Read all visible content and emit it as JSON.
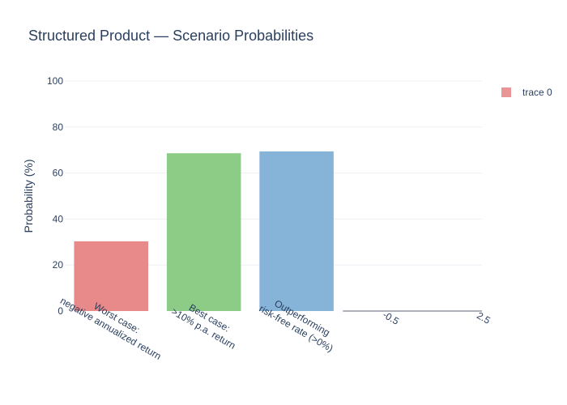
{
  "chart_data": {
    "type": "bar",
    "title": "Structured Product — Scenario Probabilities",
    "ylabel": "Probability (%)",
    "xlabel": "",
    "ylim": [
      0,
      100
    ],
    "yticks": [
      0,
      20,
      40,
      60,
      80,
      100
    ],
    "grid": true,
    "legend": {
      "position": "top-right",
      "entries": [
        "trace 0"
      ]
    },
    "categories": [
      [
        "Worst case:",
        "negative annualized return"
      ],
      [
        "Best case:",
        ">10% p.a. return"
      ],
      [
        "Outperforming",
        "risk-free rate (>0%)"
      ]
    ],
    "values": [
      30.3,
      68.6,
      69.4
    ],
    "colors": [
      "#e8898a",
      "#8dcc86",
      "#86b3d8"
    ],
    "extra_tick_labels": [
      "-0.5",
      "2.5"
    ]
  }
}
